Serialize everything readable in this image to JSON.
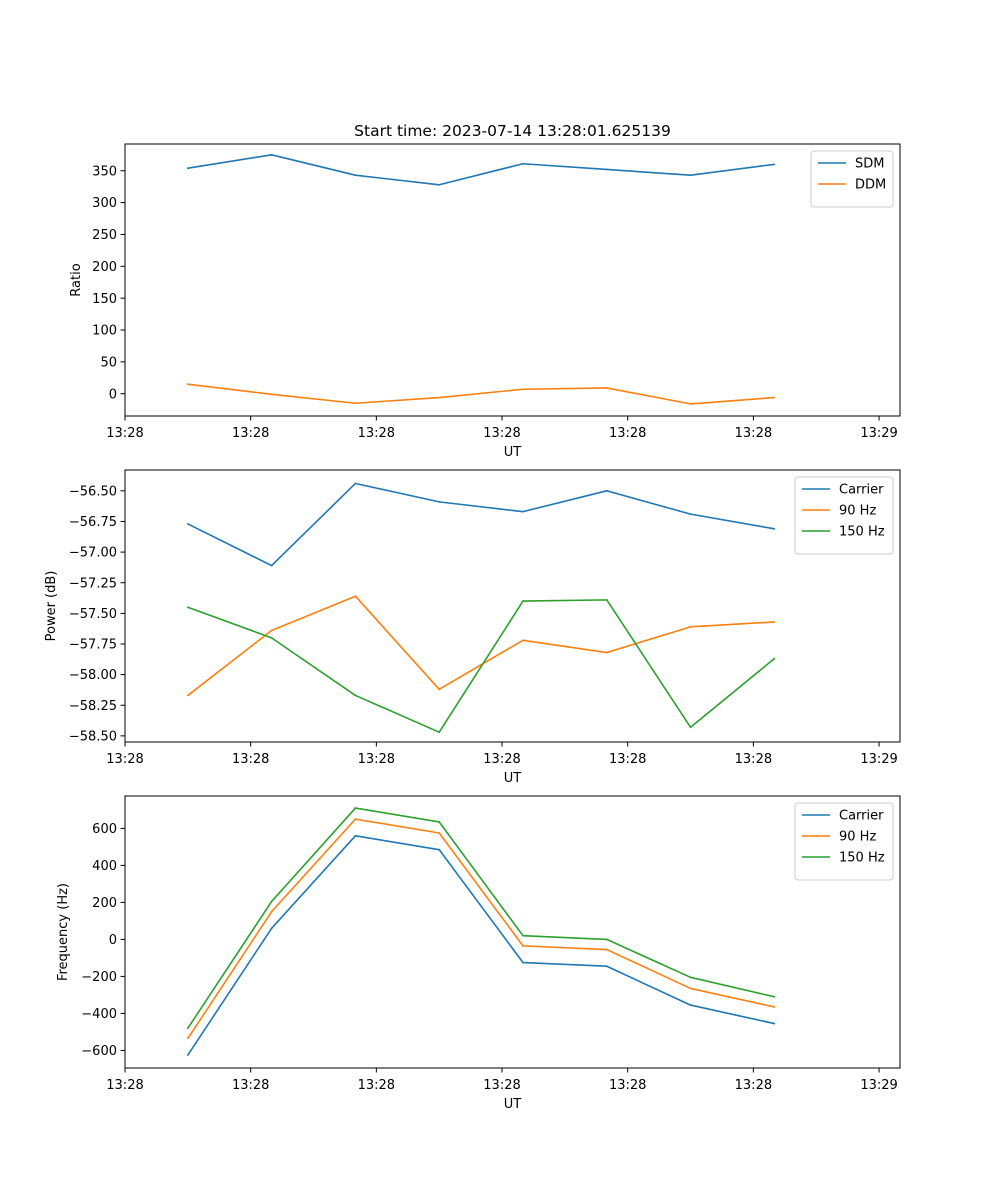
{
  "figure_title": "Start time: 2023-07-14 13:28:01.625139",
  "chart_data": [
    {
      "type": "line",
      "title": "Start time: 2023-07-14 13:28:01.625139",
      "xlabel": "UT",
      "ylabel": "Ratio",
      "x": [
        0.75,
        1.75,
        2.75,
        3.75,
        4.75,
        5.75,
        6.75,
        7.75
      ],
      "xlim": [
        0,
        9.25
      ],
      "xticks": [
        0.0,
        1.5,
        3.0,
        4.5,
        6.0,
        7.5,
        9.0
      ],
      "xticklabels": [
        "13:28",
        "13:28",
        "13:28",
        "13:28",
        "13:28",
        "13:28",
        "13:29"
      ],
      "ylim": [
        -35,
        392
      ],
      "yticks": [
        0,
        50,
        100,
        150,
        200,
        250,
        300,
        350
      ],
      "yticklabels": [
        "0",
        "50",
        "100",
        "150",
        "200",
        "250",
        "300",
        "350"
      ],
      "legend_position": "top-right",
      "series": [
        {
          "name": "SDM",
          "color": "#1f77b4",
          "values": [
            354,
            375,
            343,
            328,
            361,
            352,
            343,
            360
          ]
        },
        {
          "name": "DDM",
          "color": "#ff7f0e",
          "values": [
            15,
            -1,
            -15,
            -6,
            7,
            9,
            -16,
            -6
          ]
        }
      ]
    },
    {
      "type": "line",
      "xlabel": "UT",
      "ylabel": "Power (dB)",
      "x": [
        0.75,
        1.75,
        2.75,
        3.75,
        4.75,
        5.75,
        6.75,
        7.75
      ],
      "xlim": [
        0,
        9.25
      ],
      "xticks": [
        0.0,
        1.5,
        3.0,
        4.5,
        6.0,
        7.5,
        9.0
      ],
      "xticklabels": [
        "13:28",
        "13:28",
        "13:28",
        "13:28",
        "13:28",
        "13:28",
        "13:29"
      ],
      "ylim": [
        -58.55,
        -56.33
      ],
      "yticks": [
        -58.5,
        -58.25,
        -58.0,
        -57.75,
        -57.5,
        -57.25,
        -57.0,
        -56.75,
        -56.5
      ],
      "yticklabels": [
        "−58.50",
        "−58.25",
        "−58.00",
        "−57.75",
        "−57.50",
        "−57.25",
        "−57.00",
        "−56.75",
        "−56.50"
      ],
      "legend_position": "top-right",
      "series": [
        {
          "name": "Carrier",
          "color": "#1f77b4",
          "values": [
            -56.77,
            -57.11,
            -56.44,
            -56.59,
            -56.67,
            -56.5,
            -56.69,
            -56.81
          ]
        },
        {
          "name": "90 Hz",
          "color": "#ff7f0e",
          "values": [
            -58.17,
            -57.64,
            -57.36,
            -58.12,
            -57.72,
            -57.82,
            -57.61,
            -57.57
          ]
        },
        {
          "name": "150 Hz",
          "color": "#2ca02c",
          "values": [
            -57.45,
            -57.7,
            -58.17,
            -58.47,
            -57.4,
            -57.39,
            -58.43,
            -57.87
          ]
        }
      ]
    },
    {
      "type": "line",
      "xlabel": "UT",
      "ylabel": "Frequency (Hz)",
      "x": [
        0.75,
        1.75,
        2.75,
        3.75,
        4.75,
        5.75,
        6.75,
        7.75
      ],
      "xlim": [
        0,
        9.25
      ],
      "xticks": [
        0.0,
        1.5,
        3.0,
        4.5,
        6.0,
        7.5,
        9.0
      ],
      "xticklabels": [
        "13:28",
        "13:28",
        "13:28",
        "13:28",
        "13:28",
        "13:28",
        "13:29"
      ],
      "ylim": [
        -695,
        775
      ],
      "yticks": [
        -600,
        -400,
        -200,
        0,
        200,
        400,
        600
      ],
      "yticklabels": [
        "−600",
        "−400",
        "−200",
        "0",
        "200",
        "400",
        "600"
      ],
      "legend_position": "top-right",
      "series": [
        {
          "name": "Carrier",
          "color": "#1f77b4",
          "values": [
            -625,
            60,
            560,
            485,
            -125,
            -145,
            -355,
            -455
          ]
        },
        {
          "name": "90 Hz",
          "color": "#ff7f0e",
          "values": [
            -535,
            150,
            650,
            575,
            -35,
            -55,
            -265,
            -365
          ]
        },
        {
          "name": "150 Hz",
          "color": "#2ca02c",
          "values": [
            -480,
            205,
            710,
            635,
            20,
            0,
            -205,
            -310
          ]
        }
      ]
    }
  ]
}
